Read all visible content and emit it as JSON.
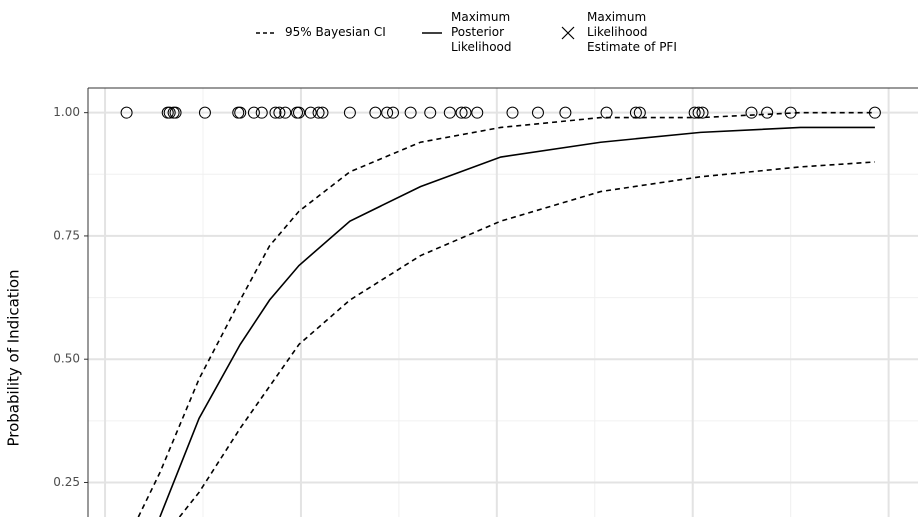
{
  "chart_data": {
    "type": "line",
    "ylabel": "Probability of Indication",
    "ylim": [
      0.18,
      1.05
    ],
    "yticks": [
      {
        "value": 0.25,
        "label": "0.25"
      },
      {
        "value": 0.5,
        "label": "0.50"
      },
      {
        "value": 0.75,
        "label": "0.75"
      },
      {
        "value": 1.0,
        "label": "1.00"
      }
    ],
    "yminor": [
      0.375,
      0.625,
      0.875
    ],
    "xlim": [
      -0.087,
      4.15
    ],
    "xgrid": [
      0,
      1,
      2,
      3,
      4
    ],
    "xminor": [
      0.5,
      1.5,
      2.5,
      3.5
    ],
    "grid": true,
    "series": [
      {
        "name": "95% Bayesian CI",
        "style": "dashed",
        "color": "#000000",
        "upper": {
          "x": [
            0.17,
            0.28,
            0.48,
            0.69,
            0.84,
            0.99,
            1.25,
            1.61,
            2.02,
            2.53,
            3.04,
            3.55,
            3.93
          ],
          "values": [
            0.18,
            0.27,
            0.46,
            0.62,
            0.73,
            0.8,
            0.88,
            0.94,
            0.97,
            0.99,
            0.99,
            1.0,
            1.0
          ]
        },
        "lower": {
          "x": [
            0.38,
            0.48,
            0.69,
            0.99,
            1.25,
            1.61,
            2.02,
            2.53,
            3.04,
            3.55,
            3.93
          ],
          "values": [
            0.18,
            0.23,
            0.36,
            0.53,
            0.62,
            0.71,
            0.78,
            0.84,
            0.87,
            0.89,
            0.9
          ]
        }
      },
      {
        "name": "Maximum Posterior Likelihood",
        "style": "solid",
        "color": "#000000",
        "x": [
          0.28,
          0.38,
          0.48,
          0.69,
          0.84,
          0.99,
          1.25,
          1.61,
          2.02,
          2.53,
          3.04,
          3.55,
          3.93
        ],
        "values": [
          0.18,
          0.28,
          0.38,
          0.53,
          0.62,
          0.69,
          0.78,
          0.85,
          0.91,
          0.94,
          0.96,
          0.97,
          0.97
        ]
      },
      {
        "name": "Maximum Likelihood Estimate of PFI",
        "style": "cross",
        "color": "#000000",
        "x": [],
        "values": []
      }
    ],
    "points": {
      "marker": "circle",
      "color": "#000000",
      "x": [
        0.11,
        0.32,
        0.33,
        0.35,
        0.36,
        0.51,
        0.68,
        0.69,
        0.76,
        0.8,
        0.87,
        0.89,
        0.92,
        0.98,
        0.99,
        1.05,
        1.09,
        1.11,
        1.25,
        1.38,
        1.44,
        1.47,
        1.56,
        1.66,
        1.76,
        1.82,
        1.84,
        1.9,
        2.08,
        2.21,
        2.35,
        2.56,
        2.71,
        2.73,
        3.01,
        3.03,
        3.05,
        3.3,
        3.38,
        3.5,
        3.93
      ],
      "values": [
        1,
        1,
        1,
        1,
        1,
        1,
        1,
        1,
        1,
        1,
        1,
        1,
        1,
        1,
        1,
        1,
        1,
        1,
        1,
        1,
        1,
        1,
        1,
        1,
        1,
        1,
        1,
        1,
        1,
        1,
        1,
        1,
        1,
        1,
        1,
        1,
        1,
        1,
        1,
        1,
        1
      ]
    }
  }
}
